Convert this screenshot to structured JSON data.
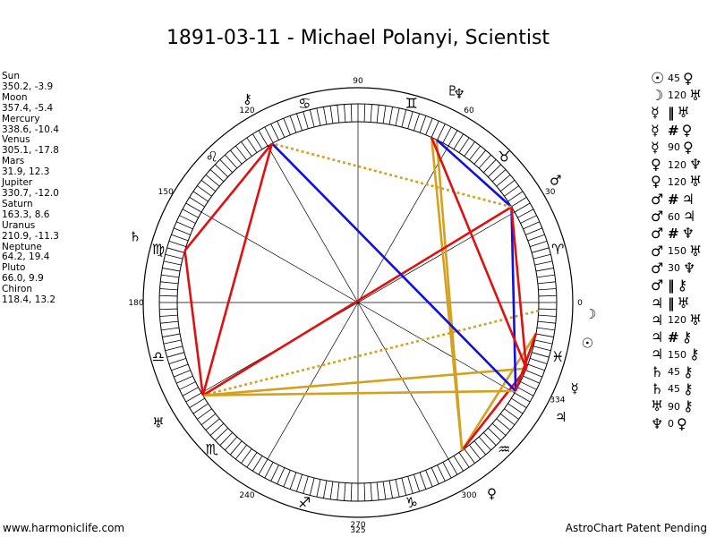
{
  "title": "1891-03-11 - Michael Polanyi, Scientist",
  "planets": [
    {
      "name": "Sun",
      "coords": "350.2, -3.9",
      "lon": 350.2,
      "glyph": "☉",
      "icon": "sun-glyph"
    },
    {
      "name": "Moon",
      "coords": "357.4, -5.4",
      "lon": 357.4,
      "glyph": "☽",
      "icon": "moon-glyph"
    },
    {
      "name": "Mercury",
      "coords": "338.6, -10.4",
      "lon": 338.6,
      "glyph": "☿",
      "icon": "mercury-glyph"
    },
    {
      "name": "Venus",
      "coords": "305.1, -17.8",
      "lon": 305.1,
      "glyph": "♀",
      "icon": "venus-glyph"
    },
    {
      "name": "Mars",
      "coords": "31.9, 12.3",
      "lon": 31.9,
      "glyph": "♂",
      "icon": "mars-glyph"
    },
    {
      "name": "Jupiter",
      "coords": "330.7, -12.0",
      "lon": 330.7,
      "glyph": "♃",
      "icon": "jupiter-glyph"
    },
    {
      "name": "Saturn",
      "coords": "163.3, 8.6",
      "lon": 163.3,
      "glyph": "♄",
      "icon": "saturn-glyph"
    },
    {
      "name": "Uranus",
      "coords": "210.9, -11.3",
      "lon": 210.9,
      "glyph": "♅",
      "icon": "uranus-glyph"
    },
    {
      "name": "Neptune",
      "coords": "64.2, 19.4",
      "lon": 64.2,
      "glyph": "♆",
      "icon": "neptune-glyph"
    },
    {
      "name": "Pluto",
      "coords": "66.0, 9.9",
      "lon": 66.0,
      "glyph": "♇",
      "icon": "pluto-glyph"
    },
    {
      "name": "Chiron",
      "coords": "118.4, 13.2",
      "lon": 118.4,
      "glyph": "⚷",
      "icon": "chiron-glyph"
    }
  ],
  "aspects": [
    {
      "a": "☉",
      "n": "45",
      "b": "♀"
    },
    {
      "a": "☽",
      "n": "120",
      "b": "♅"
    },
    {
      "a": "☿",
      "n": "‖",
      "b": "♅"
    },
    {
      "a": "☿",
      "n": "#",
      "b": "♀"
    },
    {
      "a": "☿",
      "n": "90",
      "b": "♀"
    },
    {
      "a": "♀",
      "n": "120",
      "b": "♆"
    },
    {
      "a": "♀",
      "n": "120",
      "b": "♅"
    },
    {
      "a": "♂",
      "n": "#",
      "b": "♃"
    },
    {
      "a": "♂",
      "n": "60",
      "b": "♃"
    },
    {
      "a": "♂",
      "n": "#",
      "b": "♆"
    },
    {
      "a": "♂",
      "n": "150",
      "b": "♅"
    },
    {
      "a": "♂",
      "n": "30",
      "b": "♆"
    },
    {
      "a": "♂",
      "n": "‖",
      "b": "⚷"
    },
    {
      "a": "♃",
      "n": "‖",
      "b": "♅"
    },
    {
      "a": "♃",
      "n": "120",
      "b": "♅"
    },
    {
      "a": "♃",
      "n": "#",
      "b": "⚷"
    },
    {
      "a": "♃",
      "n": "150",
      "b": "⚷"
    },
    {
      "a": "♄",
      "n": "45",
      "b": "⚷"
    },
    {
      "a": "♄",
      "n": "45",
      "b": "⚷"
    },
    {
      "a": "♅",
      "n": "90",
      "b": "⚷"
    },
    {
      "a": "♆",
      "n": "0",
      "b": "♀"
    }
  ],
  "wheel": {
    "degree_labels": [
      {
        "text": "0",
        "deg": 0
      },
      {
        "text": "30",
        "deg": 30
      },
      {
        "text": "60",
        "deg": 60
      },
      {
        "text": "90",
        "deg": 90
      },
      {
        "text": "120",
        "deg": 120
      },
      {
        "text": "150",
        "deg": 150
      },
      {
        "text": "180",
        "deg": 180
      },
      {
        "text": "240",
        "deg": 240
      },
      {
        "text": "270",
        "deg": 270
      },
      {
        "text": "300",
        "deg": 300
      },
      {
        "text": "334",
        "deg": 334
      }
    ],
    "signs": [
      {
        "glyph": "♈",
        "name": "aries-glyph",
        "deg": 15
      },
      {
        "glyph": "♉",
        "name": "taurus-glyph",
        "deg": 45
      },
      {
        "glyph": "♊",
        "name": "gemini-glyph",
        "deg": 75
      },
      {
        "glyph": "♋",
        "name": "cancer-glyph",
        "deg": 105
      },
      {
        "glyph": "♌",
        "name": "leo-glyph",
        "deg": 135
      },
      {
        "glyph": "♍",
        "name": "virgo-glyph",
        "deg": 165
      },
      {
        "glyph": "♎",
        "name": "libra-glyph",
        "deg": 195
      },
      {
        "glyph": "♏",
        "name": "scorpio-glyph",
        "deg": 225
      },
      {
        "glyph": "♐",
        "name": "sagittarius-glyph",
        "deg": 255
      },
      {
        "glyph": "♑",
        "name": "capricorn-glyph",
        "deg": 285
      },
      {
        "glyph": "♒",
        "name": "aquarius-glyph",
        "deg": 315
      },
      {
        "glyph": "♓",
        "name": "pisces-glyph",
        "deg": 345
      }
    ],
    "aspect_lines": [
      {
        "from": 350.2,
        "to": 305.1,
        "color": "#d4a020"
      },
      {
        "from": 357.4,
        "to": 210.9,
        "color": "#d4a020",
        "dash": true
      },
      {
        "from": 338.6,
        "to": 210.9,
        "color": "#d4a020"
      },
      {
        "from": 338.6,
        "to": 305.1,
        "color": "#e01010"
      },
      {
        "from": 305.1,
        "to": 64.2,
        "color": "#d4a020"
      },
      {
        "from": 305.1,
        "to": 66.0,
        "color": "#d4a020"
      },
      {
        "from": 31.9,
        "to": 330.7,
        "color": "#1010e0"
      },
      {
        "from": 31.9,
        "to": 64.2,
        "color": "#1010e0"
      },
      {
        "from": 31.9,
        "to": 210.9,
        "color": "#e01010"
      },
      {
        "from": 31.9,
        "to": 118.4,
        "color": "#d4a020",
        "dash": true
      },
      {
        "from": 330.7,
        "to": 210.9,
        "color": "#d4a020"
      },
      {
        "from": 330.7,
        "to": 118.4,
        "color": "#1010e0"
      },
      {
        "from": 163.3,
        "to": 118.4,
        "color": "#e01010"
      },
      {
        "from": 163.3,
        "to": 210.9,
        "color": "#e01010"
      },
      {
        "from": 210.9,
        "to": 118.4,
        "color": "#e01010"
      },
      {
        "from": 66.0,
        "to": 338.6,
        "color": "#e01010"
      },
      {
        "from": 31.9,
        "to": 338.6,
        "color": "#e01010"
      },
      {
        "from": 330.7,
        "to": 350.2,
        "color": "#e01010"
      }
    ],
    "asc_deg": 0
  },
  "footer": {
    "left": "www.harmoniclife.com",
    "center": "325",
    "right": "AstroChart Patent Pending"
  }
}
